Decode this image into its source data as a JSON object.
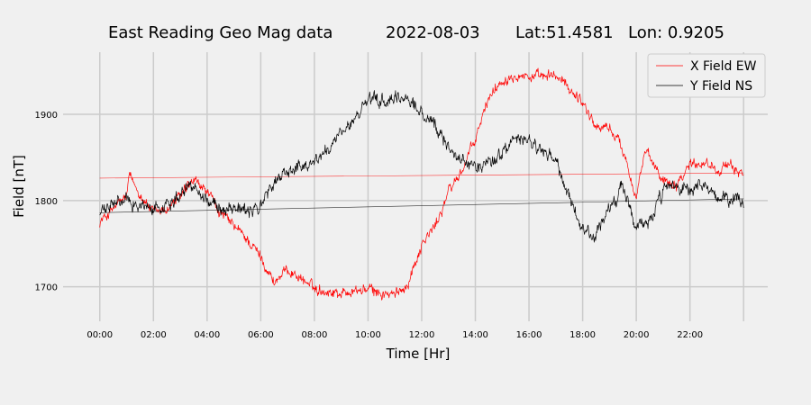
{
  "chart_data": {
    "type": "line",
    "title_parts": [
      "East Reading Geo Mag data",
      "2022-08-03",
      "Lat:51.4581",
      "Lon: 0.9205"
    ],
    "xlabel": "Time  [Hr]",
    "ylabel": "Field  [nT]",
    "x_unit": "hours",
    "xlim": [
      -1.1,
      24.9
    ],
    "ylim": [
      1660,
      1972
    ],
    "x_ticks": [
      {
        "value": 0,
        "label": "00:00"
      },
      {
        "value": 2,
        "label": "02:00"
      },
      {
        "value": 4,
        "label": "04:00"
      },
      {
        "value": 6,
        "label": "06:00"
      },
      {
        "value": 8,
        "label": "08:00"
      },
      {
        "value": 10,
        "label": "10:00"
      },
      {
        "value": 12,
        "label": "12:00"
      },
      {
        "value": 14,
        "label": "14:00"
      },
      {
        "value": 16,
        "label": "16:00"
      },
      {
        "value": 18,
        "label": "18:00"
      },
      {
        "value": 20,
        "label": "20:00"
      },
      {
        "value": 22,
        "label": "22:00"
      }
    ],
    "y_ticks": [
      {
        "value": 1700,
        "label": "1700"
      },
      {
        "value": 1800,
        "label": "1800"
      },
      {
        "value": 1900,
        "label": "1900"
      }
    ],
    "grid": true,
    "legend_position": "top-right",
    "series": [
      {
        "name": "X Field EW",
        "color": "#ff0000",
        "x": [
          0,
          0.5,
          1,
          1.1,
          1.5,
          2,
          2.5,
          3,
          3.5,
          4,
          4.5,
          5,
          5.5,
          6,
          6.5,
          7,
          7.5,
          8,
          8.5,
          9,
          9.5,
          10,
          10.5,
          11,
          11.5,
          12,
          12.5,
          13,
          13.5,
          14,
          14.5,
          15,
          15.5,
          16,
          16.5,
          17,
          17.5,
          18,
          18.5,
          19,
          19.5,
          20,
          20.3,
          20.5,
          21,
          21.5,
          22,
          22.5,
          23,
          23.5,
          24
        ],
        "y": [
          1775,
          1790,
          1805,
          1828,
          1808,
          1785,
          1790,
          1805,
          1822,
          1810,
          1785,
          1770,
          1755,
          1735,
          1705,
          1720,
          1710,
          1698,
          1695,
          1693,
          1695,
          1697,
          1692,
          1690,
          1705,
          1750,
          1770,
          1810,
          1835,
          1870,
          1920,
          1940,
          1948,
          1944,
          1942,
          1945,
          1930,
          1915,
          1885,
          1885,
          1860,
          1805,
          1855,
          1848,
          1825,
          1820,
          1843,
          1845,
          1838,
          1838,
          1833
        ],
        "noise": 8,
        "trend": {
          "x": [
            0,
            24
          ],
          "y": [
            1826,
            1832
          ]
        }
      },
      {
        "name": "Y Field NS",
        "color": "#000000",
        "x": [
          0,
          0.5,
          1,
          1.5,
          2,
          2.5,
          3,
          3.5,
          4,
          4.5,
          5,
          5.5,
          6,
          6.5,
          7,
          7.5,
          8,
          8.5,
          9,
          9.5,
          10,
          10.5,
          11,
          11.5,
          12,
          12.5,
          13,
          13.5,
          14,
          14.5,
          15,
          15.5,
          16,
          16.5,
          17,
          17.5,
          18,
          18.5,
          19,
          19.5,
          20,
          20.5,
          21,
          21.5,
          22,
          22.5,
          23,
          23.5,
          24
        ],
        "y": [
          1785,
          1795,
          1800,
          1795,
          1790,
          1795,
          1810,
          1820,
          1800,
          1790,
          1795,
          1785,
          1795,
          1820,
          1835,
          1840,
          1845,
          1860,
          1875,
          1895,
          1915,
          1915,
          1915,
          1920,
          1900,
          1885,
          1865,
          1845,
          1840,
          1845,
          1855,
          1870,
          1870,
          1855,
          1845,
          1800,
          1765,
          1760,
          1790,
          1815,
          1770,
          1775,
          1810,
          1815,
          1810,
          1815,
          1805,
          1800,
          1800
        ],
        "noise": 10,
        "trend": {
          "x": [
            0,
            24
          ],
          "y": [
            1786,
            1802
          ]
        }
      }
    ]
  }
}
